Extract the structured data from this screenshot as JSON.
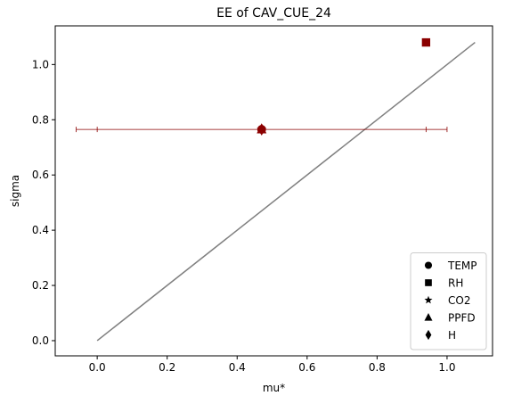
{
  "chart_data": {
    "type": "scatter",
    "title": "EE of CAV_CUE_24",
    "xlabel": "mu*",
    "ylabel": "sigma",
    "xlim": [
      -0.12,
      1.13
    ],
    "ylim": [
      -0.055,
      1.14
    ],
    "xticks": [
      0.0,
      0.2,
      0.4,
      0.6,
      0.8,
      1.0
    ],
    "xtick_labels": [
      "0.0",
      "0.2",
      "0.4",
      "0.6",
      "0.8",
      "1.0"
    ],
    "yticks": [
      0.0,
      0.2,
      0.4,
      0.6,
      0.8,
      1.0
    ],
    "ytick_labels": [
      "0.0",
      "0.2",
      "0.4",
      "0.6",
      "0.8",
      "1.0"
    ],
    "grid": false,
    "legend_position": "lower-right",
    "marker_color": "#8b0000",
    "errorbar_color": "#8b0000",
    "reference_line_color": "#808080",
    "legend_marker_color": "#000000",
    "series": [
      {
        "name": "TEMP",
        "marker": "circle",
        "x": 0.47,
        "y": 0.765
      },
      {
        "name": "RH",
        "marker": "square",
        "x": 0.94,
        "y": 1.08
      },
      {
        "name": "CO2",
        "marker": "star",
        "x": 0.47,
        "y": 0.765
      },
      {
        "name": "PPFD",
        "marker": "triangle",
        "x": 0.47,
        "y": 0.765
      },
      {
        "name": "H",
        "marker": "diamond",
        "x": 0.47,
        "y": 0.765
      }
    ],
    "errorbars": [
      {
        "y": 0.765,
        "xmin": -0.06,
        "xmax": 1.0,
        "inner_caps": [
          0.0,
          0.94
        ]
      }
    ],
    "reference_line": {
      "x": [
        0.0,
        1.08
      ],
      "y": [
        0.0,
        1.08
      ]
    }
  }
}
